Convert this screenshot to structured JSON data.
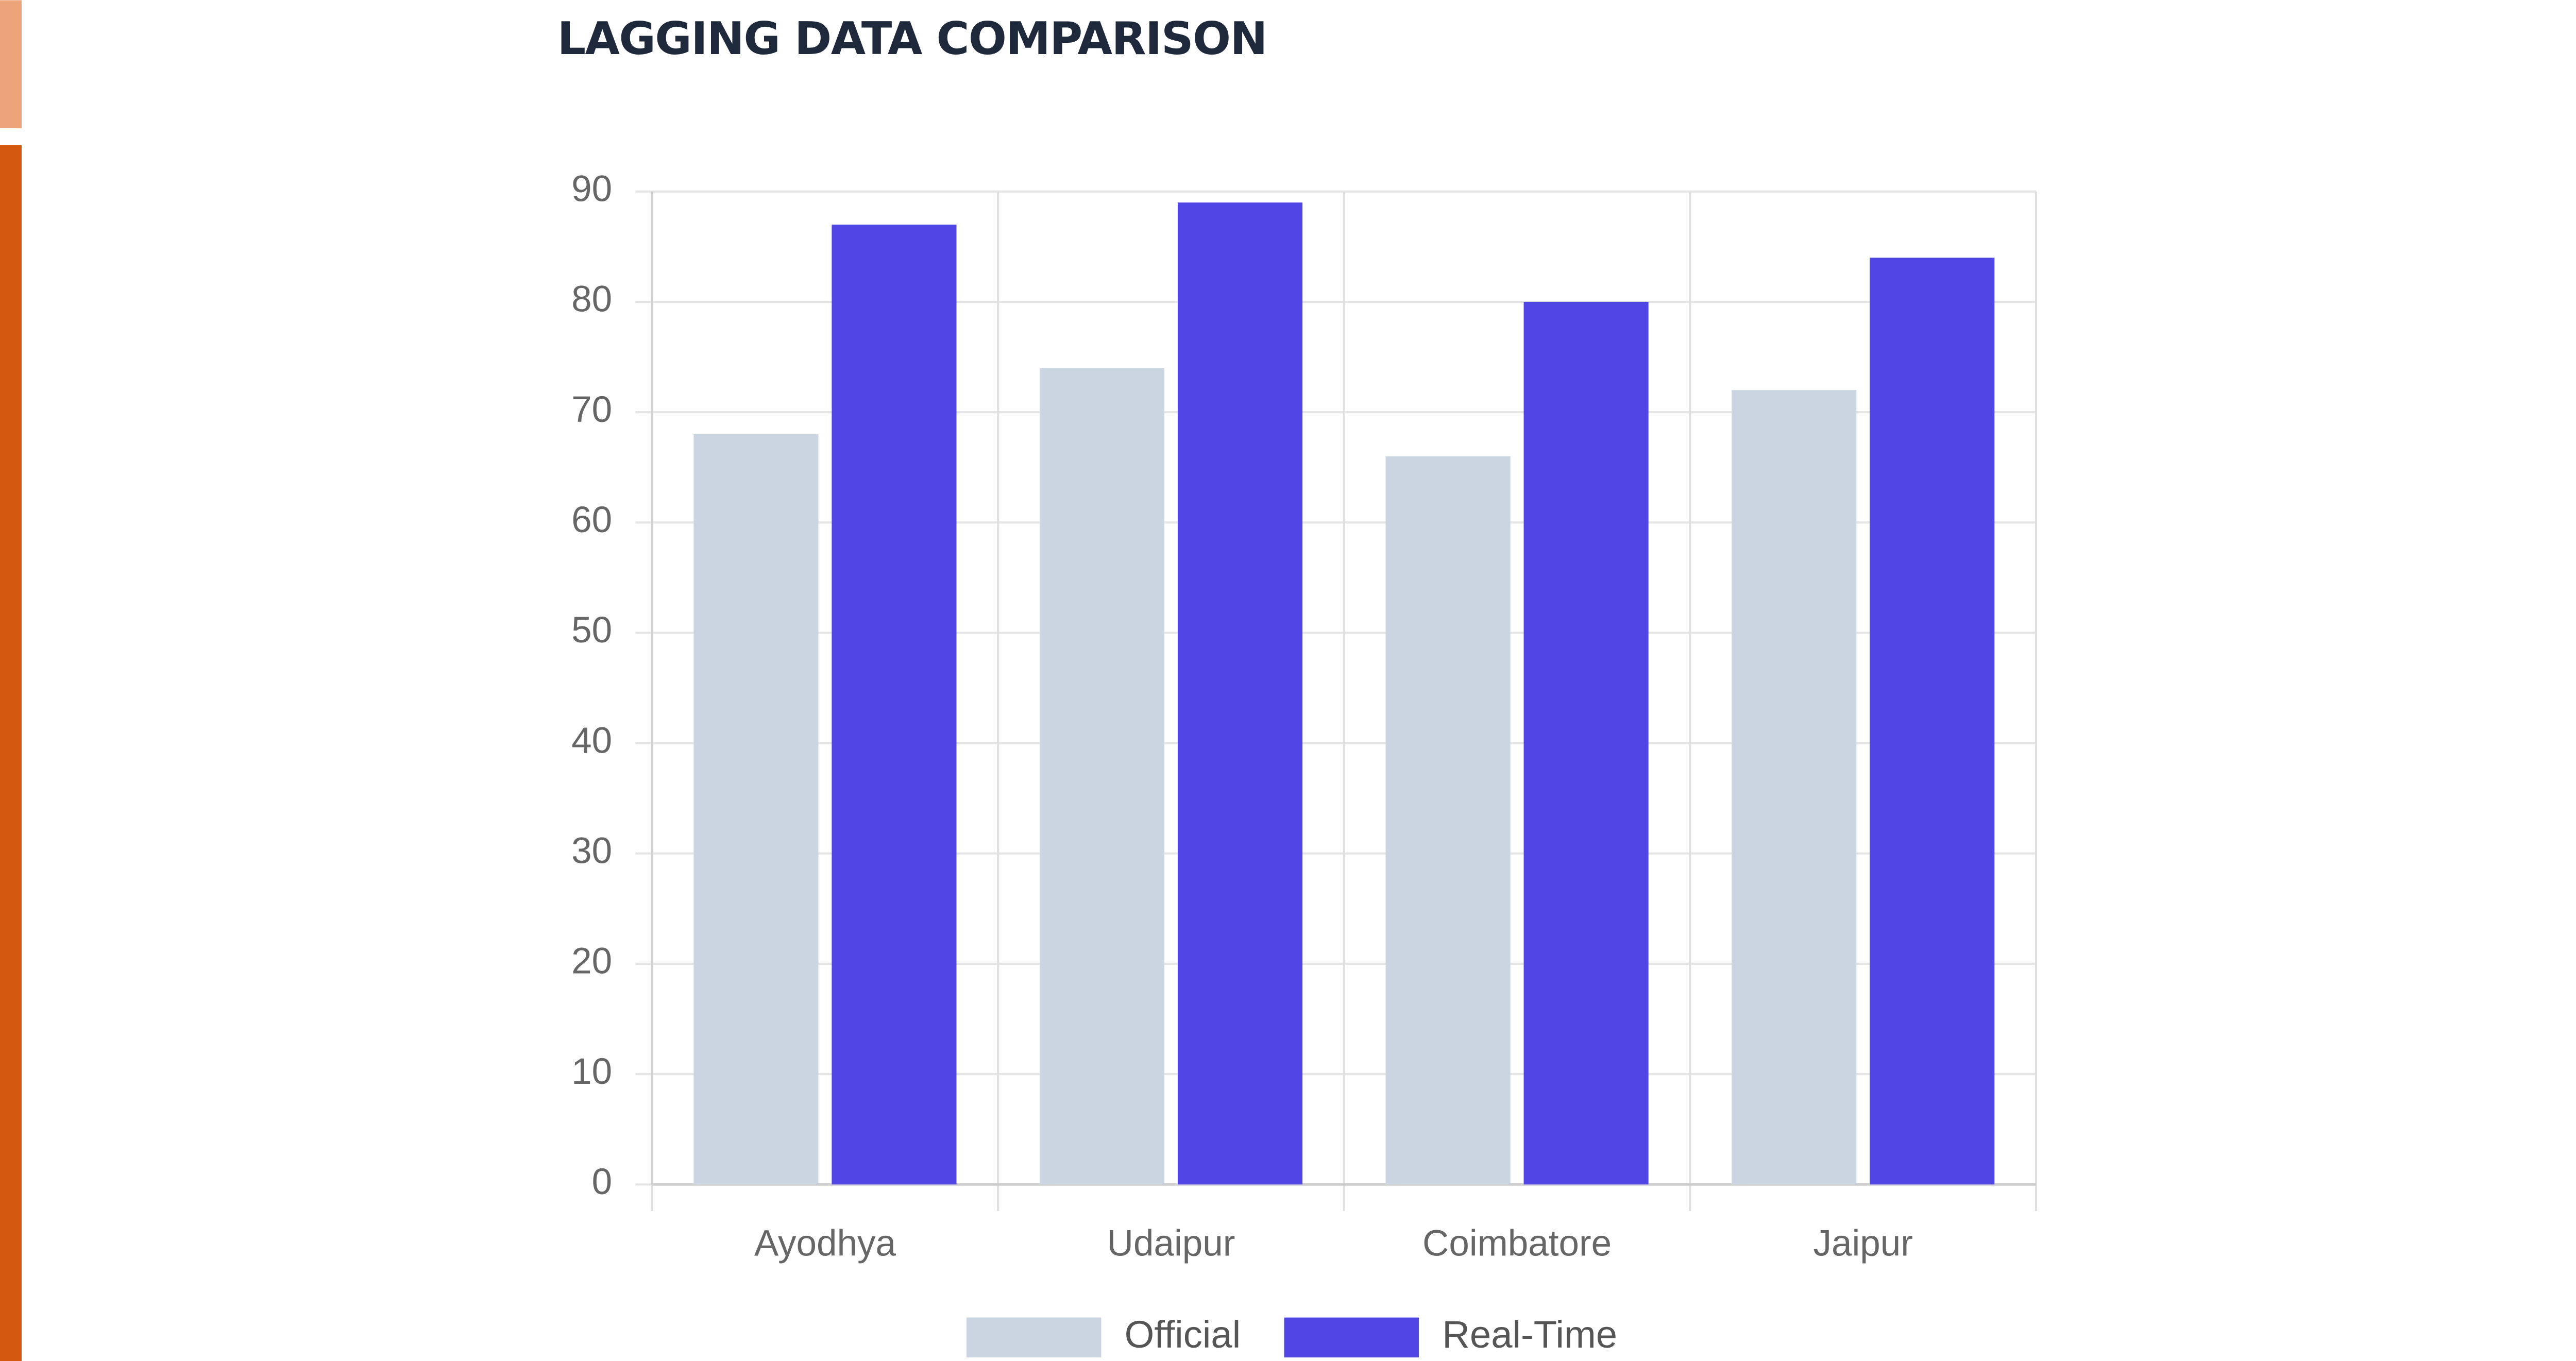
{
  "chart_data": {
    "type": "bar",
    "title": "LAGGING DATA COMPARISON",
    "categories": [
      "Ayodhya",
      "Udaipur",
      "Coimbatore",
      "Jaipur"
    ],
    "series": [
      {
        "name": "Official",
        "color": "#cbd5e1",
        "values": [
          68,
          74,
          66,
          72
        ]
      },
      {
        "name": "Real-Time",
        "color": "#4f46e5",
        "values": [
          87,
          89,
          80,
          84
        ]
      }
    ],
    "ylim": [
      0,
      90
    ],
    "yticks": [
      0,
      10,
      20,
      30,
      40,
      50,
      60,
      70,
      80,
      90
    ],
    "grid": true
  }
}
